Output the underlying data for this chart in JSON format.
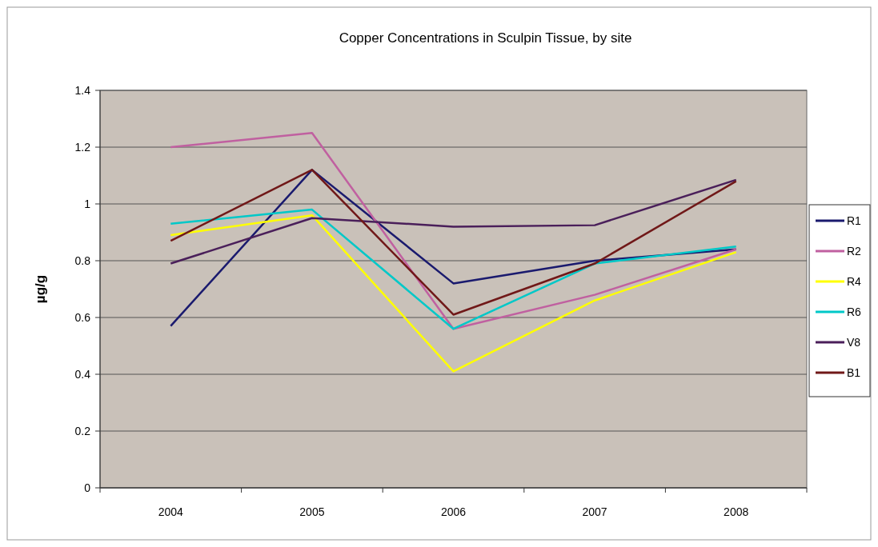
{
  "chart_data": {
    "type": "line",
    "title": "Copper Concentrations in Sculpin Tissue, by site",
    "ylabel": "µg/g",
    "categories": [
      "2004",
      "2005",
      "2006",
      "2007",
      "2008"
    ],
    "ylim": [
      0,
      1.4
    ],
    "yticks": [
      0,
      0.2,
      0.4,
      0.6,
      0.8,
      1,
      1.2,
      1.4
    ],
    "grid": "y",
    "legend": "right",
    "marker": "none",
    "line_style": "solid",
    "series": [
      {
        "name": "R1",
        "color": "#1a1a6e",
        "values": [
          0.57,
          1.12,
          0.72,
          0.8,
          0.84
        ]
      },
      {
        "name": "R2",
        "color": "#c060a0",
        "values": [
          1.2,
          1.25,
          0.56,
          0.68,
          0.84
        ]
      },
      {
        "name": "R4",
        "color": "#ffff00",
        "values": [
          0.89,
          0.96,
          0.41,
          0.66,
          0.83
        ]
      },
      {
        "name": "R6",
        "color": "#00c8c8",
        "values": [
          0.93,
          0.98,
          0.56,
          0.79,
          0.85
        ]
      },
      {
        "name": "V8",
        "color": "#4a1f5a",
        "values": [
          0.79,
          0.95,
          0.92,
          0.925,
          1.085
        ]
      },
      {
        "name": "B1",
        "color": "#701818",
        "values": [
          0.87,
          1.12,
          0.61,
          0.79,
          1.08
        ]
      }
    ]
  }
}
